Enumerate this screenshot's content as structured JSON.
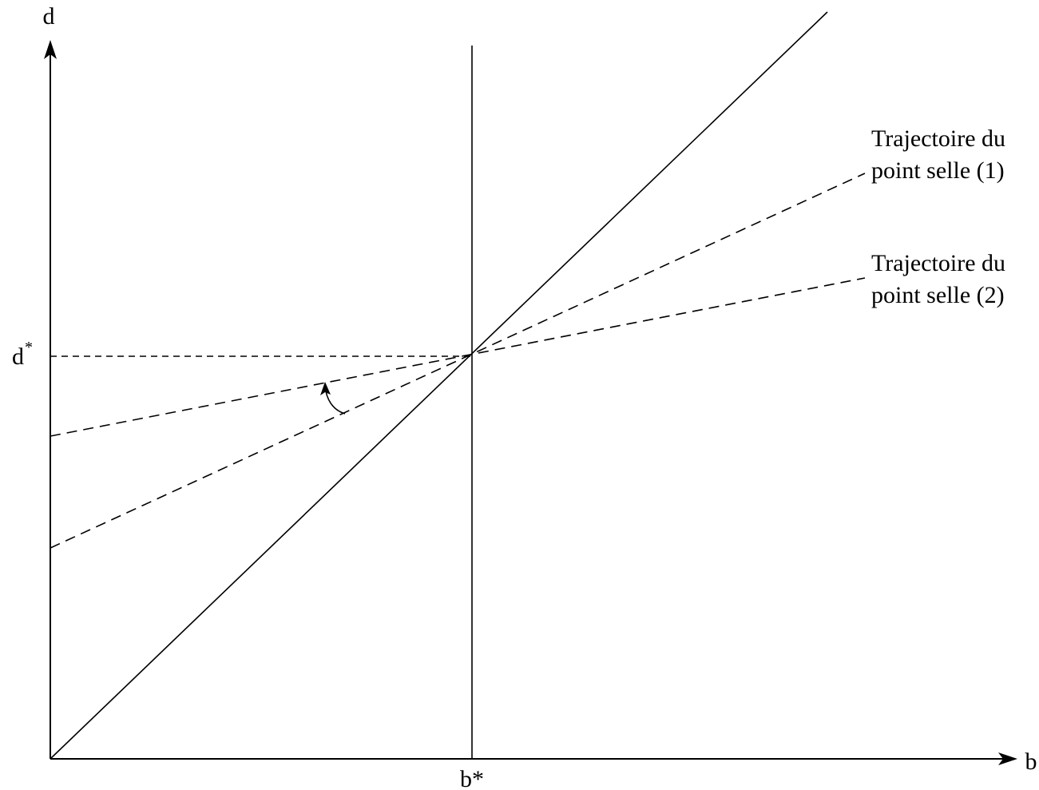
{
  "axes": {
    "x_label": "b",
    "y_label": "d",
    "x_tick": "b*",
    "y_tick_base": "d",
    "y_tick_sup": "*"
  },
  "annotations": {
    "trajectory_1": {
      "line1": "Trajectoire du",
      "line2": "point selle (1)"
    },
    "trajectory_2": {
      "line1": "Trajectoire du",
      "line2": "point selle (2)"
    }
  }
}
